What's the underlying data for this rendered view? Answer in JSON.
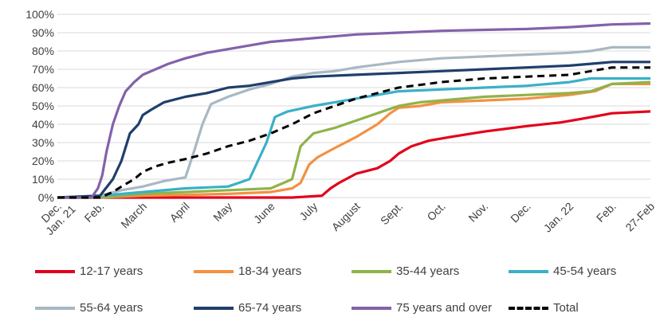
{
  "chart_data": {
    "type": "line",
    "title": "",
    "xlabel": "",
    "ylabel": "",
    "ylim": [
      0,
      100
    ],
    "y_ticks": [
      "0%",
      "10%",
      "20%",
      "30%",
      "40%",
      "50%",
      "60%",
      "70%",
      "80%",
      "90%",
      "100%"
    ],
    "x_ticks": [
      "Dec. Jan. 21",
      "Feb.",
      "March",
      "April",
      "May",
      "June",
      "July",
      "August",
      "Sept.",
      "Oct.",
      "Nov.",
      "Dec.",
      "Jan. 22",
      "Feb.",
      "27-Feb"
    ],
    "x_tick_positions_month_index": [
      0,
      1,
      2,
      3,
      4,
      5,
      6,
      7,
      8,
      9,
      10,
      11,
      12,
      13,
      13.9
    ],
    "grid": "horizontal",
    "legend_position": "bottom",
    "series": [
      {
        "name": "12-17 years",
        "color": "#e3001b",
        "dashed": false,
        "x": [
          0,
          5.5,
          6.2,
          6.4,
          6.6,
          7.0,
          7.5,
          7.8,
          8.0,
          8.3,
          8.7,
          9.2,
          10,
          11,
          11.8,
          12.3,
          13,
          13.9
        ],
        "y": [
          0,
          0,
          1,
          5,
          8,
          13,
          16,
          20,
          24,
          28,
          31,
          33,
          36,
          39,
          41,
          43,
          46,
          47
        ]
      },
      {
        "name": "18-34 years",
        "color": "#f39143",
        "dashed": false,
        "x": [
          0,
          1,
          2,
          3,
          4,
          5,
          5.5,
          5.7,
          5.9,
          6.1,
          6.5,
          7.0,
          7.5,
          7.8,
          8.0,
          8.5,
          9,
          10,
          11,
          12,
          12.6,
          13,
          13.9
        ],
        "y": [
          0,
          0,
          1,
          1.5,
          2,
          3,
          5,
          8,
          18,
          22,
          27,
          33,
          40,
          46,
          49,
          50,
          52,
          53,
          54,
          56,
          58,
          62,
          62
        ]
      },
      {
        "name": "35-44 years",
        "color": "#8fb34a",
        "dashed": false,
        "x": [
          0,
          1,
          2,
          3,
          4,
          5,
          5.3,
          5.5,
          5.7,
          6.0,
          6.5,
          7.0,
          7.5,
          8.0,
          8.5,
          9,
          10,
          11,
          12,
          12.5,
          13,
          13.9
        ],
        "y": [
          0,
          0,
          2,
          3,
          4,
          5,
          8,
          10,
          28,
          35,
          38,
          42,
          46,
          50,
          52,
          53,
          55,
          56,
          57,
          58,
          62,
          63
        ]
      },
      {
        "name": "45-54 years",
        "color": "#3ab0c8",
        "dashed": false,
        "x": [
          0,
          1,
          2,
          3,
          4,
          4.5,
          4.7,
          4.9,
          5.1,
          5.4,
          6.0,
          6.5,
          7.0,
          7.5,
          8.0,
          9,
          10,
          11,
          12,
          12.5,
          13,
          13.9
        ],
        "y": [
          0,
          1,
          3,
          5,
          6,
          10,
          20,
          30,
          44,
          47,
          50,
          52,
          54,
          56,
          58,
          59,
          60,
          61,
          63,
          65,
          65,
          65
        ]
      },
      {
        "name": "55-64 years",
        "color": "#a8b8c4",
        "dashed": false,
        "x": [
          0,
          1,
          1.5,
          2,
          2.5,
          3,
          3.2,
          3.4,
          3.6,
          4.0,
          4.5,
          5.0,
          5.5,
          6.0,
          6.5,
          7.0,
          8,
          9,
          10,
          11,
          12,
          12.5,
          13,
          13.9
        ],
        "y": [
          0,
          1,
          4,
          6,
          9,
          11,
          25,
          40,
          51,
          55,
          59,
          62,
          66,
          68,
          69,
          71,
          74,
          76,
          77,
          78,
          79,
          80,
          82,
          82
        ]
      },
      {
        "name": "65-74 years",
        "color": "#1f3f6b",
        "dashed": false,
        "x": [
          0,
          1,
          1.3,
          1.5,
          1.7,
          1.9,
          2.0,
          2.2,
          2.5,
          3.0,
          3.5,
          4.0,
          4.5,
          5.0,
          5.5,
          6.0,
          7,
          8,
          9,
          10,
          11,
          12,
          12.5,
          13,
          13.9
        ],
        "y": [
          0,
          1,
          10,
          20,
          35,
          40,
          45,
          48,
          52,
          55,
          57,
          60,
          61,
          63,
          65,
          66,
          67,
          68,
          69,
          70,
          71,
          72,
          73,
          74,
          74
        ]
      },
      {
        "name": "75 years and over",
        "color": "#8262aa",
        "dashed": false,
        "x": [
          0,
          0.8,
          0.95,
          1.05,
          1.15,
          1.3,
          1.45,
          1.6,
          1.8,
          2.0,
          2.3,
          2.6,
          3.0,
          3.5,
          4.0,
          4.5,
          5.0,
          6.0,
          7.0,
          8.0,
          9.0,
          10,
          11,
          12,
          13,
          13.9
        ],
        "y": [
          0,
          0,
          5,
          12,
          25,
          40,
          50,
          58,
          63,
          67,
          70,
          73,
          76,
          79,
          81,
          83,
          85,
          87,
          89,
          90,
          91,
          91.5,
          92,
          93,
          94.5,
          95
        ]
      },
      {
        "name": "Total",
        "color": "#000000",
        "dashed": true,
        "x": [
          0,
          1,
          1.3,
          1.5,
          1.8,
          2.0,
          2.3,
          2.6,
          3.0,
          3.5,
          4.0,
          4.5,
          5.0,
          5.5,
          6.0,
          6.5,
          7.0,
          7.5,
          8.0,
          9,
          10,
          11,
          12,
          12.5,
          13,
          13.9
        ],
        "y": [
          0,
          0,
          3,
          6,
          10,
          14,
          17,
          19,
          21,
          24,
          28,
          31,
          35,
          40,
          46,
          50,
          54,
          57,
          60,
          63,
          65,
          66,
          67,
          69,
          71,
          71
        ]
      }
    ]
  }
}
